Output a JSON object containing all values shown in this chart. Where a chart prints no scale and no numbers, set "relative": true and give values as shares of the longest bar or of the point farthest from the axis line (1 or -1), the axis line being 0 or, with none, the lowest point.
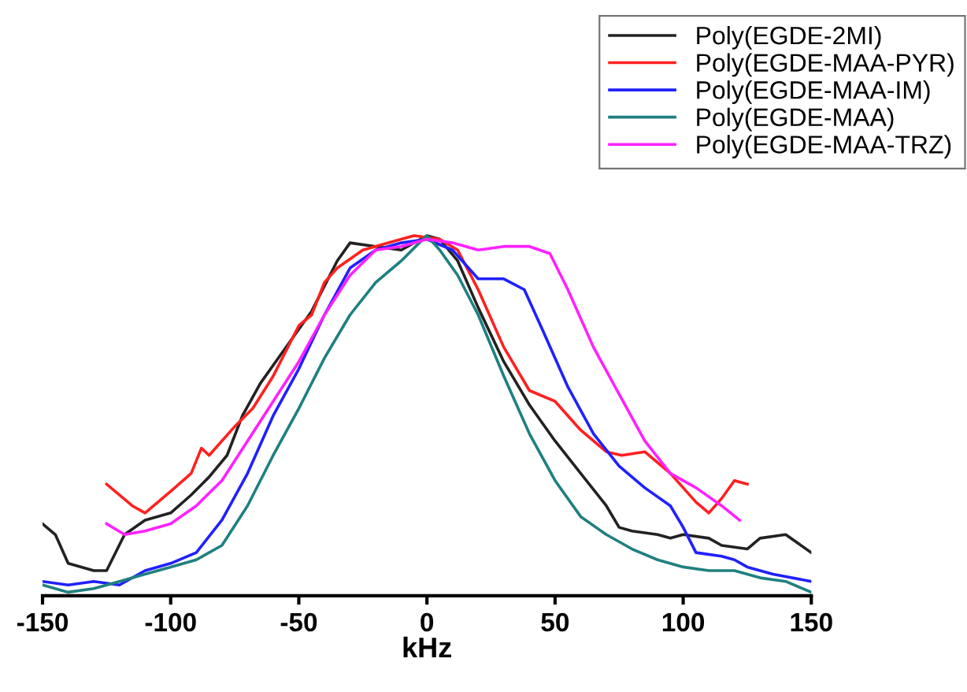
{
  "chart_data": {
    "type": "line",
    "xlabel": "kHz",
    "relative": true,
    "xlim": [
      -150,
      150
    ],
    "xticks": [
      -150,
      -100,
      -50,
      0,
      50,
      100,
      150
    ],
    "legend": "top right",
    "grid": false,
    "series": [
      {
        "name": "Poly(EGDE-2MI)",
        "color": "#222222",
        "x": [
          -150,
          -145,
          -140,
          -130,
          -125,
          -118,
          -110,
          -100,
          -92,
          -85,
          -78,
          -72,
          -65,
          -57,
          -50,
          -45,
          -40,
          -35,
          -30,
          -20,
          -10,
          0,
          5,
          12,
          20,
          30,
          40,
          50,
          60,
          70,
          75,
          80,
          90,
          95,
          100,
          110,
          115,
          125,
          130,
          140,
          150
        ],
        "values": [
          0.2,
          0.17,
          0.09,
          0.07,
          0.07,
          0.17,
          0.21,
          0.23,
          0.28,
          0.33,
          0.39,
          0.5,
          0.59,
          0.67,
          0.74,
          0.79,
          0.86,
          0.93,
          0.98,
          0.97,
          0.96,
          1.0,
          0.99,
          0.93,
          0.8,
          0.65,
          0.53,
          0.43,
          0.34,
          0.25,
          0.19,
          0.18,
          0.17,
          0.16,
          0.17,
          0.16,
          0.14,
          0.13,
          0.16,
          0.17,
          0.12
        ]
      },
      {
        "name": "Poly(EGDE-MAA-PYR)",
        "color": "#ff2020",
        "x": [
          -125,
          -115,
          -110,
          -100,
          -92,
          -88,
          -85,
          -75,
          -68,
          -60,
          -50,
          -45,
          -40,
          -35,
          -25,
          -15,
          -5,
          5,
          12,
          20,
          30,
          40,
          50,
          60,
          70,
          76,
          85,
          95,
          105,
          110,
          115,
          120,
          125
        ],
        "values": [
          0.31,
          0.25,
          0.23,
          0.29,
          0.34,
          0.41,
          0.39,
          0.47,
          0.52,
          0.61,
          0.75,
          0.78,
          0.87,
          0.91,
          0.96,
          0.98,
          1.0,
          0.99,
          0.96,
          0.85,
          0.69,
          0.57,
          0.54,
          0.46,
          0.4,
          0.39,
          0.4,
          0.34,
          0.26,
          0.23,
          0.27,
          0.32,
          0.31
        ]
      },
      {
        "name": "Poly(EGDE-MAA-IM)",
        "color": "#2020ff",
        "x": [
          -150,
          -140,
          -130,
          -120,
          -110,
          -100,
          -90,
          -80,
          -70,
          -60,
          -50,
          -40,
          -30,
          -20,
          -10,
          0,
          10,
          20,
          30,
          38,
          45,
          55,
          65,
          75,
          85,
          95,
          100,
          105,
          115,
          120,
          125,
          135,
          150
        ],
        "values": [
          0.04,
          0.03,
          0.04,
          0.03,
          0.07,
          0.09,
          0.12,
          0.21,
          0.34,
          0.5,
          0.63,
          0.78,
          0.91,
          0.96,
          0.98,
          0.99,
          0.96,
          0.88,
          0.88,
          0.85,
          0.74,
          0.58,
          0.45,
          0.36,
          0.3,
          0.25,
          0.19,
          0.12,
          0.11,
          0.1,
          0.08,
          0.06,
          0.04
        ]
      },
      {
        "name": "Poly(EGDE-MAA)",
        "color": "#1f8080",
        "x": [
          -150,
          -140,
          -130,
          -120,
          -110,
          -100,
          -90,
          -80,
          -70,
          -60,
          -50,
          -40,
          -30,
          -20,
          -10,
          -3,
          0,
          5,
          12,
          20,
          30,
          40,
          50,
          60,
          70,
          80,
          90,
          100,
          110,
          120,
          130,
          140,
          150
        ],
        "values": [
          0.03,
          0.01,
          0.02,
          0.04,
          0.06,
          0.08,
          0.1,
          0.14,
          0.25,
          0.39,
          0.52,
          0.66,
          0.78,
          0.87,
          0.93,
          0.98,
          1.0,
          0.96,
          0.89,
          0.78,
          0.61,
          0.45,
          0.32,
          0.22,
          0.17,
          0.13,
          0.1,
          0.08,
          0.07,
          0.07,
          0.05,
          0.04,
          0.01
        ]
      },
      {
        "name": "Poly(EGDE-MAA-TRZ)",
        "color": "#ff20ff",
        "x": [
          -125,
          -118,
          -110,
          -100,
          -90,
          -80,
          -70,
          -60,
          -50,
          -40,
          -30,
          -20,
          -10,
          0,
          10,
          20,
          30,
          40,
          48,
          55,
          65,
          75,
          85,
          95,
          105,
          115,
          122
        ],
        "values": [
          0.2,
          0.17,
          0.18,
          0.2,
          0.25,
          0.32,
          0.43,
          0.54,
          0.65,
          0.78,
          0.89,
          0.96,
          0.97,
          0.99,
          0.98,
          0.96,
          0.97,
          0.97,
          0.95,
          0.85,
          0.69,
          0.56,
          0.43,
          0.34,
          0.3,
          0.25,
          0.21
        ]
      }
    ]
  }
}
